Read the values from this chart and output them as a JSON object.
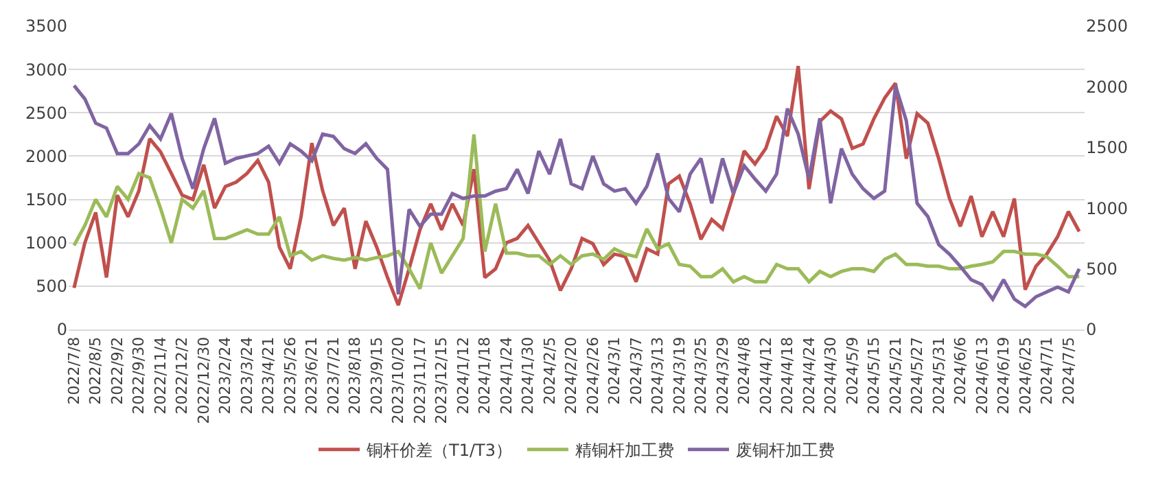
{
  "chart_data": {
    "type": "line",
    "categories": [
      "2022/7/8",
      null,
      "2022/8/5",
      null,
      "2022/9/2",
      null,
      "2022/9/30",
      null,
      "2022/11/4",
      null,
      "2022/12/2",
      null,
      "2022/12/30",
      null,
      "2023/2/24",
      null,
      "2023/3/24",
      null,
      "2023/4/21",
      null,
      "2023/5/26",
      null,
      "2023/6/21",
      null,
      "2023/7/21",
      null,
      "2023/8/18",
      null,
      "2023/9/15",
      null,
      "2023/10/20",
      null,
      "2023/11/17",
      null,
      "2023/12/15",
      null,
      "2024/1/12",
      null,
      "2024/1/18",
      null,
      "2024/1/24",
      null,
      "2024/1/30",
      null,
      "2024/2/5",
      null,
      "2024/2/20",
      null,
      "2024/2/26",
      null,
      "2024/3/1",
      null,
      "2024/3/7",
      null,
      "2024/3/13",
      null,
      "2024/3/19",
      null,
      "2024/3/25",
      null,
      "2024/3/29",
      null,
      "2024/4/8",
      null,
      "2024/4/12",
      null,
      "2024/4/18",
      null,
      "2024/4/24",
      null,
      "2024/4/30",
      null,
      "2024/5/9",
      null,
      "2024/5/15",
      null,
      "2024/5/21",
      null,
      "2024/5/27",
      null,
      "2024/5/31",
      null,
      "2024/6/6",
      null,
      "2024/6/13",
      null,
      "2024/6/19",
      null,
      "2024/6/25",
      null,
      "2024/7/1",
      null,
      "2024/7/5",
      null
    ],
    "series": [
      {
        "name": "铜杆价差（T1/T3）",
        "color": "#c0504d",
        "values": [
          480,
          1000,
          1350,
          600,
          1550,
          1300,
          1600,
          2200,
          2050,
          1800,
          1550,
          1500,
          1900,
          1400,
          1650,
          1700,
          1800,
          1950,
          1700,
          950,
          700,
          1300,
          2150,
          1600,
          1200,
          1400,
          700,
          1250,
          950,
          600,
          280,
          700,
          1150,
          1450,
          1150,
          1450,
          1200,
          1850,
          600,
          700,
          1000,
          1050,
          1200,
          1000,
          800,
          450,
          700,
          1050,
          990,
          750,
          870,
          840,
          550,
          930,
          870,
          1680,
          1770,
          1450,
          1040,
          1270,
          1160,
          1560,
          2060,
          1910,
          2090,
          2460,
          2230,
          3040,
          1620,
          2400,
          2520,
          2430,
          2090,
          2140,
          2430,
          2670,
          2840,
          1970,
          2490,
          2380,
          1970,
          1510,
          1190,
          1540,
          1070,
          1360,
          1070,
          1510,
          460,
          730,
          870,
          1070,
          1360,
          1130
        ]
      },
      {
        "name": "精铜杆加工费",
        "color": "#9bbb59",
        "values": [
          970,
          1200,
          1500,
          1300,
          1650,
          1500,
          1800,
          1750,
          1400,
          1000,
          1500,
          1400,
          1600,
          1050,
          1050,
          1100,
          1150,
          1100,
          1100,
          1300,
          850,
          900,
          800,
          850,
          820,
          800,
          830,
          800,
          830,
          850,
          900,
          700,
          470,
          1000,
          650,
          850,
          1050,
          2250,
          900,
          1450,
          880,
          880,
          850,
          850,
          750,
          850,
          750,
          850,
          870,
          810,
          930,
          870,
          840,
          1160,
          930,
          990,
          750,
          730,
          610,
          610,
          700,
          550,
          610,
          550,
          550,
          750,
          700,
          700,
          550,
          670,
          610,
          670,
          700,
          700,
          670,
          810,
          870,
          750,
          750,
          730,
          730,
          700,
          700,
          730,
          750,
          780,
          900,
          900,
          870,
          870,
          840,
          730,
          610,
          610
        ]
      },
      {
        "name": "废铜杆加工费",
        "color": "#8064a2",
        "axis": "y2",
        "values": [
          2010,
          1900,
          1700,
          1660,
          1450,
          1450,
          1530,
          1680,
          1570,
          1780,
          1410,
          1160,
          1490,
          1740,
          1370,
          1410,
          1430,
          1450,
          1510,
          1370,
          1530,
          1470,
          1390,
          1610,
          1590,
          1490,
          1450,
          1530,
          1410,
          1320,
          290,
          990,
          850,
          950,
          950,
          1120,
          1080,
          1100,
          1100,
          1140,
          1160,
          1320,
          1120,
          1470,
          1280,
          1570,
          1200,
          1160,
          1430,
          1200,
          1140,
          1160,
          1040,
          1180,
          1450,
          1080,
          970,
          1280,
          1410,
          1040,
          1410,
          1120,
          1350,
          1240,
          1140,
          1280,
          1820,
          1610,
          1240,
          1740,
          1040,
          1490,
          1280,
          1160,
          1080,
          1140,
          2010,
          1720,
          1040,
          930,
          700,
          620,
          520,
          410,
          370,
          250,
          410,
          250,
          190,
          270,
          310,
          350,
          310,
          500
        ]
      }
    ],
    "ylim": [
      0,
      3500
    ],
    "yticks": [
      0,
      500,
      1000,
      1500,
      2000,
      2500,
      3000,
      3500
    ],
    "y2lim": [
      0,
      2500
    ],
    "y2ticks": [
      0,
      500,
      1000,
      1500,
      2000,
      2500
    ],
    "grid": "y",
    "legend": "bottom",
    "marker": "none",
    "line_style": "solid"
  }
}
